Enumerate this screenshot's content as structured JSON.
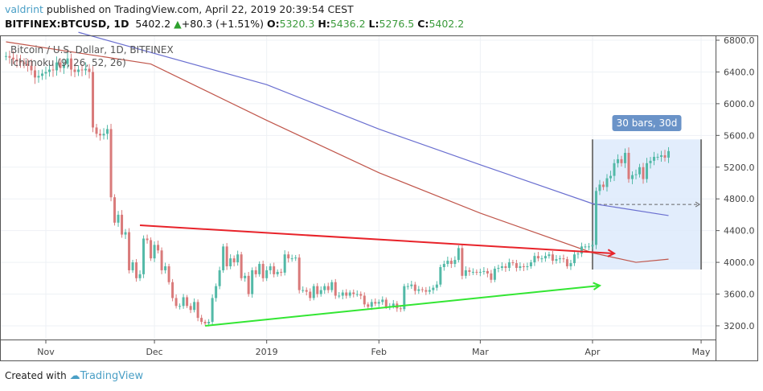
{
  "header": {
    "author": "valdrint",
    "published": "published on TradingView.com, April 22, 2019 20:39:54 CEST",
    "symbol": "BITFINEX:BTCUSD, 1D",
    "last": "5402.2",
    "change": "+80.3 (+1.51%)",
    "o_label": "O:",
    "o": "5320.3",
    "h_label": "H:",
    "h": "5436.2",
    "l_label": "L:",
    "l": "5276.5",
    "c_label": "C:",
    "c": "5402.2"
  },
  "legend": {
    "title": "Bitcoin / U.S. Dollar, 1D, BITFINEX",
    "indicator": "Ichimoku (9, 26, 52, 26)"
  },
  "footer": {
    "created": "Created with",
    "brand": "TradingView"
  },
  "colors": {
    "up": "#53b9a7",
    "down": "#d97a7a",
    "red_line": "#e8232a",
    "green_line": "#33e633",
    "ma_red": "#c0564b",
    "ma_blue": "#6a6fd0",
    "range_fill": "#dbe9fb",
    "range_label": "#6a93c8"
  },
  "chart_data": {
    "type": "candlestick",
    "year": 2018,
    "x_ticks": [
      [
        "11-01",
        "Nov"
      ],
      [
        "12-01",
        "Dec"
      ],
      [
        "2019-01-01",
        "2019"
      ],
      [
        "2019-02-01",
        "Feb"
      ],
      [
        "2019-03-01",
        "Mar"
      ],
      [
        "2019-04-01",
        "Apr"
      ],
      [
        "2019-05-01",
        "May"
      ]
    ],
    "y_ticks": [
      "3200.0",
      "3600.0",
      "4000.0",
      "4400.0",
      "4800.0",
      "5200.0",
      "5600.0",
      "6000.0",
      "6400.0",
      "6800.0"
    ],
    "ylim": [
      3000,
      6900
    ],
    "closes": [
      [
        "2018-10-21",
        6600
      ],
      [
        "2018-10-22",
        6580
      ],
      [
        "2018-10-23",
        6560
      ],
      [
        "2018-10-24",
        6540
      ],
      [
        "2018-10-25",
        6520
      ],
      [
        "2018-10-26",
        6500
      ],
      [
        "2018-10-27",
        6480
      ],
      [
        "2018-10-28",
        6420
      ],
      [
        "2018-10-29",
        6330
      ],
      [
        "2018-10-30",
        6350
      ],
      [
        "2018-10-31",
        6380
      ],
      [
        "2018-11-01",
        6400
      ],
      [
        "2018-11-02",
        6430
      ],
      [
        "2018-11-03",
        6420
      ],
      [
        "2018-11-04",
        6520
      ],
      [
        "2018-11-05",
        6450
      ],
      [
        "2018-11-06",
        6500
      ],
      [
        "2018-11-07",
        6570
      ],
      [
        "2018-11-08",
        6430
      ],
      [
        "2018-11-09",
        6400
      ],
      [
        "2018-11-10",
        6430
      ],
      [
        "2018-11-11",
        6420
      ],
      [
        "2018-11-12",
        6440
      ],
      [
        "2018-11-13",
        6400
      ],
      [
        "2018-11-14",
        5700
      ],
      [
        "2018-11-15",
        5620
      ],
      [
        "2018-11-16",
        5600
      ],
      [
        "2018-11-17",
        5620
      ],
      [
        "2018-11-18",
        5680
      ],
      [
        "2018-11-19",
        4820
      ],
      [
        "2018-11-20",
        4500
      ],
      [
        "2018-11-21",
        4600
      ],
      [
        "2018-11-22",
        4350
      ],
      [
        "2018-11-23",
        4380
      ],
      [
        "2018-11-24",
        3900
      ],
      [
        "2018-11-25",
        4000
      ],
      [
        "2018-11-26",
        3800
      ],
      [
        "2018-11-27",
        3850
      ],
      [
        "2018-11-28",
        4300
      ],
      [
        "2018-11-29",
        4280
      ],
      [
        "2018-11-30",
        4050
      ],
      [
        "2018-12-01",
        4220
      ],
      [
        "2018-12-02",
        4150
      ],
      [
        "2018-12-03",
        3900
      ],
      [
        "2018-12-04",
        3950
      ],
      [
        "2018-12-05",
        3750
      ],
      [
        "2018-12-06",
        3550
      ],
      [
        "2018-12-07",
        3450
      ],
      [
        "2018-12-08",
        3450
      ],
      [
        "2018-12-09",
        3560
      ],
      [
        "2018-12-10",
        3450
      ],
      [
        "2018-12-11",
        3400
      ],
      [
        "2018-12-12",
        3500
      ],
      [
        "2018-12-13",
        3300
      ],
      [
        "2018-12-14",
        3250
      ],
      [
        "2018-12-15",
        3230
      ],
      [
        "2018-12-16",
        3250
      ],
      [
        "2018-12-17",
        3550
      ],
      [
        "2018-12-18",
        3700
      ],
      [
        "2018-12-19",
        3900
      ],
      [
        "2018-12-20",
        4200
      ],
      [
        "2018-12-21",
        3950
      ],
      [
        "2018-12-22",
        4050
      ],
      [
        "2018-12-23",
        4000
      ],
      [
        "2018-12-24",
        4100
      ],
      [
        "2018-12-25",
        3800
      ],
      [
        "2018-12-26",
        3830
      ],
      [
        "2018-12-27",
        3600
      ],
      [
        "2018-12-28",
        3900
      ],
      [
        "2018-12-29",
        3850
      ],
      [
        "2018-12-30",
        3980
      ],
      [
        "2018-12-31",
        3800
      ],
      [
        "2019-01-01",
        3900
      ],
      [
        "2019-01-02",
        3950
      ],
      [
        "2019-01-03",
        3850
      ],
      [
        "2019-01-04",
        3880
      ],
      [
        "2019-01-05",
        3870
      ],
      [
        "2019-01-06",
        4100
      ],
      [
        "2019-01-07",
        4050
      ],
      [
        "2019-01-08",
        4050
      ],
      [
        "2019-01-09",
        4060
      ],
      [
        "2019-01-10",
        3650
      ],
      [
        "2019-01-11",
        3650
      ],
      [
        "2019-01-12",
        3630
      ],
      [
        "2019-01-13",
        3550
      ],
      [
        "2019-01-14",
        3700
      ],
      [
        "2019-01-15",
        3600
      ],
      [
        "2019-01-16",
        3650
      ],
      [
        "2019-01-17",
        3700
      ],
      [
        "2019-01-18",
        3650
      ],
      [
        "2019-01-19",
        3750
      ],
      [
        "2019-01-20",
        3580
      ],
      [
        "2019-01-21",
        3580
      ],
      [
        "2019-01-22",
        3620
      ],
      [
        "2019-01-23",
        3580
      ],
      [
        "2019-01-24",
        3620
      ],
      [
        "2019-01-25",
        3600
      ],
      [
        "2019-01-26",
        3600
      ],
      [
        "2019-01-27",
        3580
      ],
      [
        "2019-01-28",
        3470
      ],
      [
        "2019-01-29",
        3440
      ],
      [
        "2019-01-30",
        3500
      ],
      [
        "2019-01-31",
        3480
      ],
      [
        "2019-02-01",
        3500
      ],
      [
        "2019-02-02",
        3530
      ],
      [
        "2019-02-03",
        3440
      ],
      [
        "2019-02-04",
        3450
      ],
      [
        "2019-02-05",
        3480
      ],
      [
        "2019-02-06",
        3420
      ],
      [
        "2019-02-07",
        3410
      ],
      [
        "2019-02-08",
        3700
      ],
      [
        "2019-02-09",
        3700
      ],
      [
        "2019-02-10",
        3720
      ],
      [
        "2019-02-11",
        3640
      ],
      [
        "2019-02-12",
        3660
      ],
      [
        "2019-02-13",
        3650
      ],
      [
        "2019-02-14",
        3630
      ],
      [
        "2019-02-15",
        3650
      ],
      [
        "2019-02-16",
        3680
      ],
      [
        "2019-02-17",
        3720
      ],
      [
        "2019-02-18",
        3940
      ],
      [
        "2019-02-19",
        3980
      ],
      [
        "2019-02-20",
        4020
      ],
      [
        "2019-02-21",
        3980
      ],
      [
        "2019-02-22",
        4030
      ],
      [
        "2019-02-23",
        4180
      ],
      [
        "2019-02-24",
        3830
      ],
      [
        "2019-02-25",
        3900
      ],
      [
        "2019-02-26",
        3880
      ],
      [
        "2019-02-27",
        3880
      ],
      [
        "2019-02-28",
        3870
      ],
      [
        "2019-03-01",
        3880
      ],
      [
        "2019-03-02",
        3890
      ],
      [
        "2019-03-03",
        3860
      ],
      [
        "2019-03-04",
        3780
      ],
      [
        "2019-03-05",
        3920
      ],
      [
        "2019-03-06",
        3930
      ],
      [
        "2019-03-07",
        3950
      ],
      [
        "2019-03-08",
        3930
      ],
      [
        "2019-03-09",
        4000
      ],
      [
        "2019-03-10",
        3990
      ],
      [
        "2019-03-11",
        3930
      ],
      [
        "2019-03-12",
        3950
      ],
      [
        "2019-03-13",
        3940
      ],
      [
        "2019-03-14",
        3950
      ],
      [
        "2019-03-15",
        4000
      ],
      [
        "2019-03-16",
        4080
      ],
      [
        "2019-03-17",
        4050
      ],
      [
        "2019-03-18",
        4050
      ],
      [
        "2019-03-19",
        4080
      ],
      [
        "2019-03-20",
        4100
      ],
      [
        "2019-03-21",
        4020
      ],
      [
        "2019-03-22",
        4040
      ],
      [
        "2019-03-23",
        4050
      ],
      [
        "2019-03-24",
        4040
      ],
      [
        "2019-03-25",
        3950
      ],
      [
        "2019-03-26",
        3990
      ],
      [
        "2019-03-27",
        4100
      ],
      [
        "2019-03-28",
        4110
      ],
      [
        "2019-03-29",
        4200
      ],
      [
        "2019-03-30",
        4200
      ],
      [
        "2019-03-31",
        4200
      ],
      [
        "2019-04-01",
        4220
      ],
      [
        "2019-04-02",
        4900
      ],
      [
        "2019-04-03",
        4980
      ],
      [
        "2019-04-04",
        4950
      ],
      [
        "2019-04-05",
        5060
      ],
      [
        "2019-04-06",
        5090
      ],
      [
        "2019-04-07",
        5250
      ],
      [
        "2019-04-08",
        5300
      ],
      [
        "2019-04-09",
        5250
      ],
      [
        "2019-04-10",
        5380
      ],
      [
        "2019-04-11",
        5050
      ],
      [
        "2019-04-12",
        5100
      ],
      [
        "2019-04-13",
        5110
      ],
      [
        "2019-04-14",
        5200
      ],
      [
        "2019-04-15",
        5050
      ],
      [
        "2019-04-16",
        5250
      ],
      [
        "2019-04-17",
        5280
      ],
      [
        "2019-04-18",
        5330
      ],
      [
        "2019-04-19",
        5330
      ],
      [
        "2019-04-20",
        5350
      ],
      [
        "2019-04-21",
        5320
      ],
      [
        "2019-04-22",
        5402.2
      ]
    ],
    "moving_average_red": [
      [
        "2018-10-21",
        6780
      ],
      [
        "2018-11-30",
        6500
      ],
      [
        "2019-01-01",
        5790
      ],
      [
        "2019-02-01",
        5130
      ],
      [
        "2019-03-01",
        4620
      ],
      [
        "2019-04-01",
        4120
      ],
      [
        "2019-04-13",
        4000
      ],
      [
        "2019-04-22",
        4040
      ]
    ],
    "moving_average_blue": [
      [
        "2018-11-10",
        6900
      ],
      [
        "2019-01-01",
        6240
      ],
      [
        "2019-02-01",
        5680
      ],
      [
        "2019-03-01",
        5230
      ],
      [
        "2019-04-01",
        4740
      ],
      [
        "2019-04-22",
        4590
      ]
    ],
    "trendline_resistance": [
      [
        "2018-11-27",
        4467
      ],
      [
        "2019-04-07",
        4112
      ]
    ],
    "trendline_support": [
      [
        "2018-12-15",
        3200
      ],
      [
        "2019-04-03",
        3707
      ]
    ],
    "date_range": {
      "from": "2019-04-01",
      "to": "2019-05-01",
      "top": 5550,
      "bottom": 3910,
      "mid": 4730,
      "label": "30 bars, 30d"
    }
  }
}
